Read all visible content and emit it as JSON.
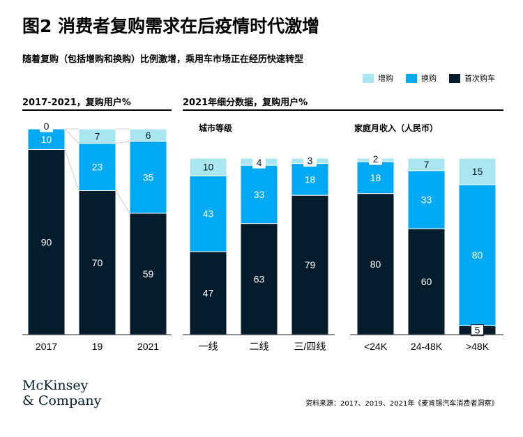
{
  "title": "图2 消费者复购需求在后疫情时代激增",
  "subtitle": "随着复购（包括增购和换购）比例激增，乘用车市场正在经历快速转型",
  "legend": [
    {
      "label": "增购",
      "color": "#aae6f0"
    },
    {
      "label": "换购",
      "color": "#00a9f4"
    },
    {
      "label": "首次购车",
      "color": "#051c2c"
    }
  ],
  "panels": {
    "left_title": "2017-2021，复购用户%",
    "right_title": "2021年细分数据，复购用户%",
    "city_title": "城市等级",
    "income_title": "家庭月收入（人民币）"
  },
  "chart_data": [
    {
      "type": "bar",
      "stacked": true,
      "title": "2017-2021，复购用户%",
      "categories": [
        "2017",
        "19",
        "2021"
      ],
      "series": [
        {
          "name": "首次购车",
          "values": [
            90,
            70,
            59
          ]
        },
        {
          "name": "换购",
          "values": [
            10,
            23,
            35
          ]
        },
        {
          "name": "增购",
          "values": [
            0,
            7,
            6
          ]
        }
      ],
      "ylim": [
        0,
        100
      ]
    },
    {
      "type": "bar",
      "stacked": true,
      "title": "城市等级",
      "categories": [
        "一线",
        "二线",
        "三/四线"
      ],
      "series": [
        {
          "name": "首次购车",
          "values": [
            47,
            63,
            79
          ]
        },
        {
          "name": "换购",
          "values": [
            43,
            33,
            18
          ]
        },
        {
          "name": "增购",
          "values": [
            10,
            4,
            3
          ]
        }
      ],
      "ylim": [
        0,
        100
      ]
    },
    {
      "type": "bar",
      "stacked": true,
      "title": "家庭月收入（人民币）",
      "categories": [
        "<24K",
        "24-48K",
        ">48K"
      ],
      "series": [
        {
          "name": "首次购车",
          "values": [
            80,
            60,
            5
          ]
        },
        {
          "name": "换购",
          "values": [
            18,
            33,
            80
          ]
        },
        {
          "name": "增购",
          "values": [
            2,
            7,
            15
          ]
        }
      ],
      "ylim": [
        0,
        100
      ]
    }
  ],
  "logo": {
    "line1": "McKinsey",
    "line2": "& Company"
  },
  "source": "资料来源：2017、2019、2021年《麦肯锡汽车消费者洞察》"
}
